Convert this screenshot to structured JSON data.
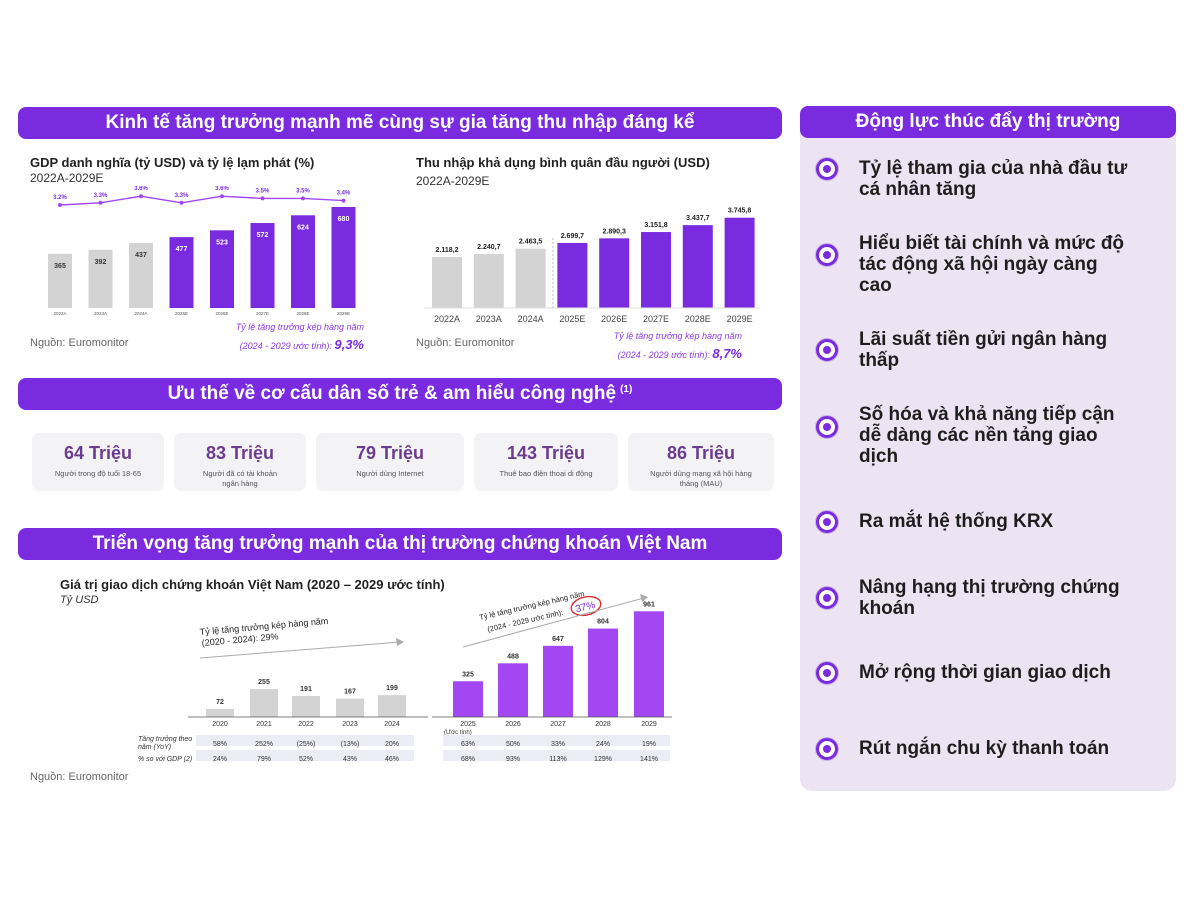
{
  "banners": {
    "economy": "Kinh tế tăng trưởng mạnh mẽ cùng sự gia tăng thu nhập đáng kể",
    "demographics": "Ưu thế về cơ cấu dân số trẻ & am hiểu công nghệ",
    "demographics_note": "(1)",
    "outlook": "Triển vọng tăng trưởng mạnh của thị trường chứng khoán Việt Nam"
  },
  "gdp": {
    "title": "GDP danh nghĩa (tỷ USD) và tỷ lệ lạm phát (%)",
    "period": "2022A-2029E",
    "source": "Nguồn: Euromonitor",
    "cagr_note_line1": "Tỷ lệ tăng trưởng kép hàng năm",
    "cagr_note_line2": "(2024 - 2029 ước tính):",
    "cagr_value": "9,3%"
  },
  "income": {
    "title": "Thu nhập khả dụng bình quân đầu người (USD)",
    "period": "2022A-2029E",
    "source": "Nguồn: Euromonitor",
    "cagr_note_line1": "Tỷ lệ tăng trưởng kép hàng năm",
    "cagr_note_line2": "(2024 - 2029 ước tính):",
    "cagr_value": "8,7%"
  },
  "stats": [
    {
      "value": "64 Triệu",
      "label": "Người trong độ tuổi 18-65"
    },
    {
      "value": "83 Triệu",
      "label": "Người đã có tài khoản ngân hàng"
    },
    {
      "value": "79 Triệu",
      "label": "Người dùng Internet"
    },
    {
      "value": "143 Triệu",
      "label": "Thuê bao điện thoại di động"
    },
    {
      "value": "86 Triệu",
      "label": "Người dùng mạng xã hội hàng tháng (MAU)"
    }
  ],
  "market": {
    "title": "Giá trị giao dịch chứng khoán Việt Nam (2020 – 2029 ước tính)",
    "unit": "Tỷ USD",
    "cagr1_line1": "Tỷ lệ tăng trưởng kép hàng năm",
    "cagr1_line2": "(2020 - 2024): 29%",
    "cagr2_line1": "Tỷ lệ tăng trưởng kép hàng năm",
    "cagr2_line2": "(2024 - 2029 ước tính):",
    "cagr2_value": "37%",
    "estimate_note": "(Ước tính)",
    "row1_label_line1": "Tăng trưởng theo",
    "row1_label_line2": "năm (YoY)",
    "row2_label": "% so với GDP (2)",
    "yoy": [
      "58%",
      "252%",
      "(25%)",
      "(13%)",
      "20%",
      "63%",
      "50%",
      "33%",
      "24%",
      "19%"
    ],
    "gdp_pct": [
      "24%",
      "79%",
      "52%",
      "43%",
      "46%",
      "68%",
      "93%",
      "113%",
      "129%",
      "141%"
    ],
    "source": "Nguồn: Euromonitor"
  },
  "drivers": {
    "title": "Động lực thúc đẩy thị trường",
    "items": [
      {
        "line1": "Tỷ lệ tham gia của nhà đầu tư",
        "line2": "cá nhân tăng",
        "line3": ""
      },
      {
        "line1": "Hiểu biết tài chính và mức độ",
        "line2": "tác động xã hội ngày càng",
        "line3": "cao"
      },
      {
        "line1": "Lãi suất tiền gửi ngân hàng",
        "line2": "thấp",
        "line3": ""
      },
      {
        "line1": "Số hóa và khả năng tiếp cận",
        "line2": "dễ dàng các nền tảng giao",
        "line3": "dịch"
      },
      {
        "line1": "Ra mắt hệ thống KRX",
        "line2": "",
        "line3": ""
      },
      {
        "line1": "Nâng hạng thị trường chứng",
        "line2": "khoán",
        "line3": ""
      },
      {
        "line1": "Mở rộng thời gian giao dịch",
        "line2": "",
        "line3": ""
      },
      {
        "line1": "Rút ngắn chu kỳ thanh toán",
        "line2": "",
        "line3": ""
      }
    ]
  },
  "colors": {
    "purple": "#7a2be0",
    "bright_purple": "#a347f2",
    "gray": "#d3d3d3"
  },
  "chart_data": [
    {
      "type": "bar",
      "title": "GDP danh nghĩa (tỷ USD) và tỷ lệ lạm phát (%)",
      "categories": [
        "2022A",
        "2023A",
        "2024A",
        "2025E",
        "2026E",
        "2027E",
        "2028E",
        "2029E"
      ],
      "series": [
        {
          "name": "GDP (tỷ USD)",
          "values": [
            365,
            392,
            437,
            477,
            523,
            572,
            624,
            680
          ],
          "labels": [
            "365",
            "392",
            "437",
            "477",
            "523",
            "572",
            "624",
            "680"
          ]
        },
        {
          "name": "Tỷ lệ lạm phát (%)",
          "kind": "line",
          "values": [
            3.2,
            3.3,
            3.6,
            3.3,
            3.6,
            3.5,
            3.5,
            3.4
          ],
          "labels": [
            "3.2%",
            "3.3%",
            "3.6%",
            "3.3%",
            "3.6%",
            "3.5%",
            "3.5%",
            "3.4%"
          ]
        }
      ],
      "ylim": [
        0,
        700
      ]
    },
    {
      "type": "bar",
      "title": "Thu nhập khả dụng bình quân đầu người (USD)",
      "categories": [
        "2022A",
        "2023A",
        "2024A",
        "2025E",
        "2026E",
        "2027E",
        "2028E",
        "2029E"
      ],
      "values": [
        2118.2,
        2240.7,
        2463.5,
        2699.7,
        2890.3,
        3151.8,
        3437.7,
        3745.8
      ],
      "labels": [
        "2.118,2",
        "2.240,7",
        "2.463,5",
        "2.699,7",
        "2.890,3",
        "3.151,8",
        "3.437,7",
        "3.745,8"
      ],
      "ylim": [
        0,
        3900
      ]
    },
    {
      "type": "bar",
      "title": "Giá trị giao dịch chứng khoán Việt Nam (2020 – 2029 ước tính)",
      "ylabel": "Tỷ USD",
      "categories": [
        "2020",
        "2021",
        "2022",
        "2023",
        "2024",
        "2025",
        "2026",
        "2027",
        "2028",
        "2029"
      ],
      "values": [
        72,
        255,
        191,
        167,
        199,
        325,
        488,
        647,
        804,
        961
      ],
      "ylim": [
        0,
        1000
      ]
    }
  ]
}
